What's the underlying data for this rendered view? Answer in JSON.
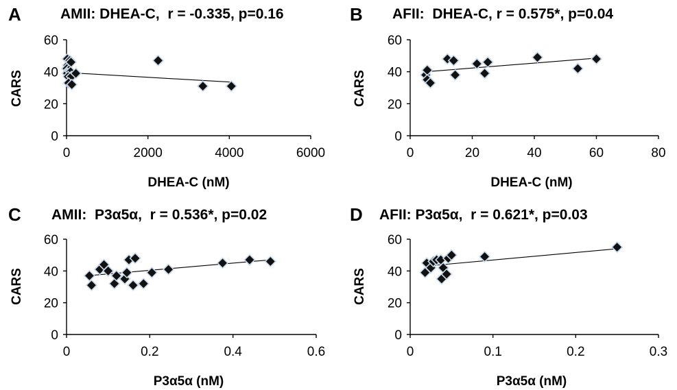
{
  "chart_data": [
    {
      "type": "scatter",
      "panel": "A",
      "title": "AMII: DHEA-C,  r = -0.335, p=0.16",
      "xlabel": "DHEA-C (nM)",
      "ylabel": "CARS",
      "xlim": [
        0,
        6000
      ],
      "ylim": [
        0,
        60
      ],
      "xticks": [
        "0",
        "2000",
        "4000",
        "6000"
      ],
      "yticks": [
        "0",
        "20",
        "40",
        "60"
      ],
      "grid": false,
      "points": [
        {
          "x": 20,
          "y": 48
        },
        {
          "x": 80,
          "y": 47
        },
        {
          "x": 30,
          "y": 44
        },
        {
          "x": 110,
          "y": 46
        },
        {
          "x": 10,
          "y": 42
        },
        {
          "x": 60,
          "y": 41
        },
        {
          "x": 20,
          "y": 39
        },
        {
          "x": 100,
          "y": 40
        },
        {
          "x": 40,
          "y": 37
        },
        {
          "x": 120,
          "y": 37
        },
        {
          "x": 50,
          "y": 33
        },
        {
          "x": 130,
          "y": 32
        },
        {
          "x": 230,
          "y": 39
        },
        {
          "x": 2250,
          "y": 47
        },
        {
          "x": 3350,
          "y": 31
        },
        {
          "x": 4050,
          "y": 31
        }
      ],
      "trendline": [
        {
          "x": 0,
          "y": 39.5
        },
        {
          "x": 4050,
          "y": 33.5
        }
      ]
    },
    {
      "type": "scatter",
      "panel": "B",
      "title": "AFII:  DHEA-C, r = 0.575*, p=0.04",
      "xlabel": "DHEA-C (nM)",
      "ylabel": "CARS",
      "xlim": [
        0,
        80
      ],
      "ylim": [
        0,
        60
      ],
      "xticks": [
        "0",
        "20",
        "40",
        "60",
        "80"
      ],
      "yticks": [
        "0",
        "20",
        "40",
        "60"
      ],
      "grid": false,
      "points": [
        {
          "x": 5,
          "y": 38
        },
        {
          "x": 5.5,
          "y": 41
        },
        {
          "x": 5.5,
          "y": 35
        },
        {
          "x": 6.5,
          "y": 33
        },
        {
          "x": 12,
          "y": 48
        },
        {
          "x": 14,
          "y": 47
        },
        {
          "x": 14.5,
          "y": 38
        },
        {
          "x": 21.5,
          "y": 45
        },
        {
          "x": 24,
          "y": 39
        },
        {
          "x": 25,
          "y": 46
        },
        {
          "x": 41,
          "y": 49
        },
        {
          "x": 54,
          "y": 42
        },
        {
          "x": 60,
          "y": 48
        }
      ],
      "trendline": [
        {
          "x": 5,
          "y": 40.0
        },
        {
          "x": 60,
          "y": 48.5
        }
      ]
    },
    {
      "type": "scatter",
      "panel": "C",
      "title": "AMII:  P3α5α,  r = 0.536*, p=0.02",
      "xlabel": "P3α5α (nM)",
      "ylabel": "CARS",
      "xlim": [
        0,
        0.6
      ],
      "ylim": [
        0,
        60
      ],
      "xticks": [
        "0",
        "0.2",
        "0.4",
        "0.6"
      ],
      "yticks": [
        "0",
        "20",
        "40",
        "60"
      ],
      "grid": false,
      "points": [
        {
          "x": 0.055,
          "y": 37
        },
        {
          "x": 0.06,
          "y": 31
        },
        {
          "x": 0.08,
          "y": 41
        },
        {
          "x": 0.09,
          "y": 44
        },
        {
          "x": 0.1,
          "y": 40
        },
        {
          "x": 0.115,
          "y": 32
        },
        {
          "x": 0.12,
          "y": 37
        },
        {
          "x": 0.14,
          "y": 35
        },
        {
          "x": 0.145,
          "y": 39
        },
        {
          "x": 0.15,
          "y": 47
        },
        {
          "x": 0.16,
          "y": 31
        },
        {
          "x": 0.165,
          "y": 48
        },
        {
          "x": 0.185,
          "y": 32
        },
        {
          "x": 0.205,
          "y": 39
        },
        {
          "x": 0.245,
          "y": 41
        },
        {
          "x": 0.375,
          "y": 45
        },
        {
          "x": 0.44,
          "y": 47
        },
        {
          "x": 0.49,
          "y": 46
        }
      ],
      "trendline": [
        {
          "x": 0.05,
          "y": 37.0
        },
        {
          "x": 0.49,
          "y": 47.0
        }
      ]
    },
    {
      "type": "scatter",
      "panel": "D",
      "title": "AFII: P3α5α,  r = 0.621*, p=0.03",
      "xlabel": "P3α5α (nM)",
      "ylabel": "CARS",
      "xlim": [
        0,
        0.3
      ],
      "ylim": [
        0,
        60
      ],
      "xticks": [
        "0",
        "0.1",
        "0.2",
        "0.3"
      ],
      "yticks": [
        "0",
        "20",
        "40",
        "60"
      ],
      "grid": false,
      "points": [
        {
          "x": 0.018,
          "y": 39
        },
        {
          "x": 0.02,
          "y": 45
        },
        {
          "x": 0.025,
          "y": 42
        },
        {
          "x": 0.028,
          "y": 46
        },
        {
          "x": 0.032,
          "y": 47
        },
        {
          "x": 0.037,
          "y": 47
        },
        {
          "x": 0.038,
          "y": 35
        },
        {
          "x": 0.04,
          "y": 42
        },
        {
          "x": 0.044,
          "y": 38
        },
        {
          "x": 0.046,
          "y": 48
        },
        {
          "x": 0.05,
          "y": 50
        },
        {
          "x": 0.09,
          "y": 49
        },
        {
          "x": 0.25,
          "y": 55
        }
      ],
      "trendline": [
        {
          "x": 0.018,
          "y": 43.0
        },
        {
          "x": 0.25,
          "y": 54.0
        }
      ]
    }
  ]
}
